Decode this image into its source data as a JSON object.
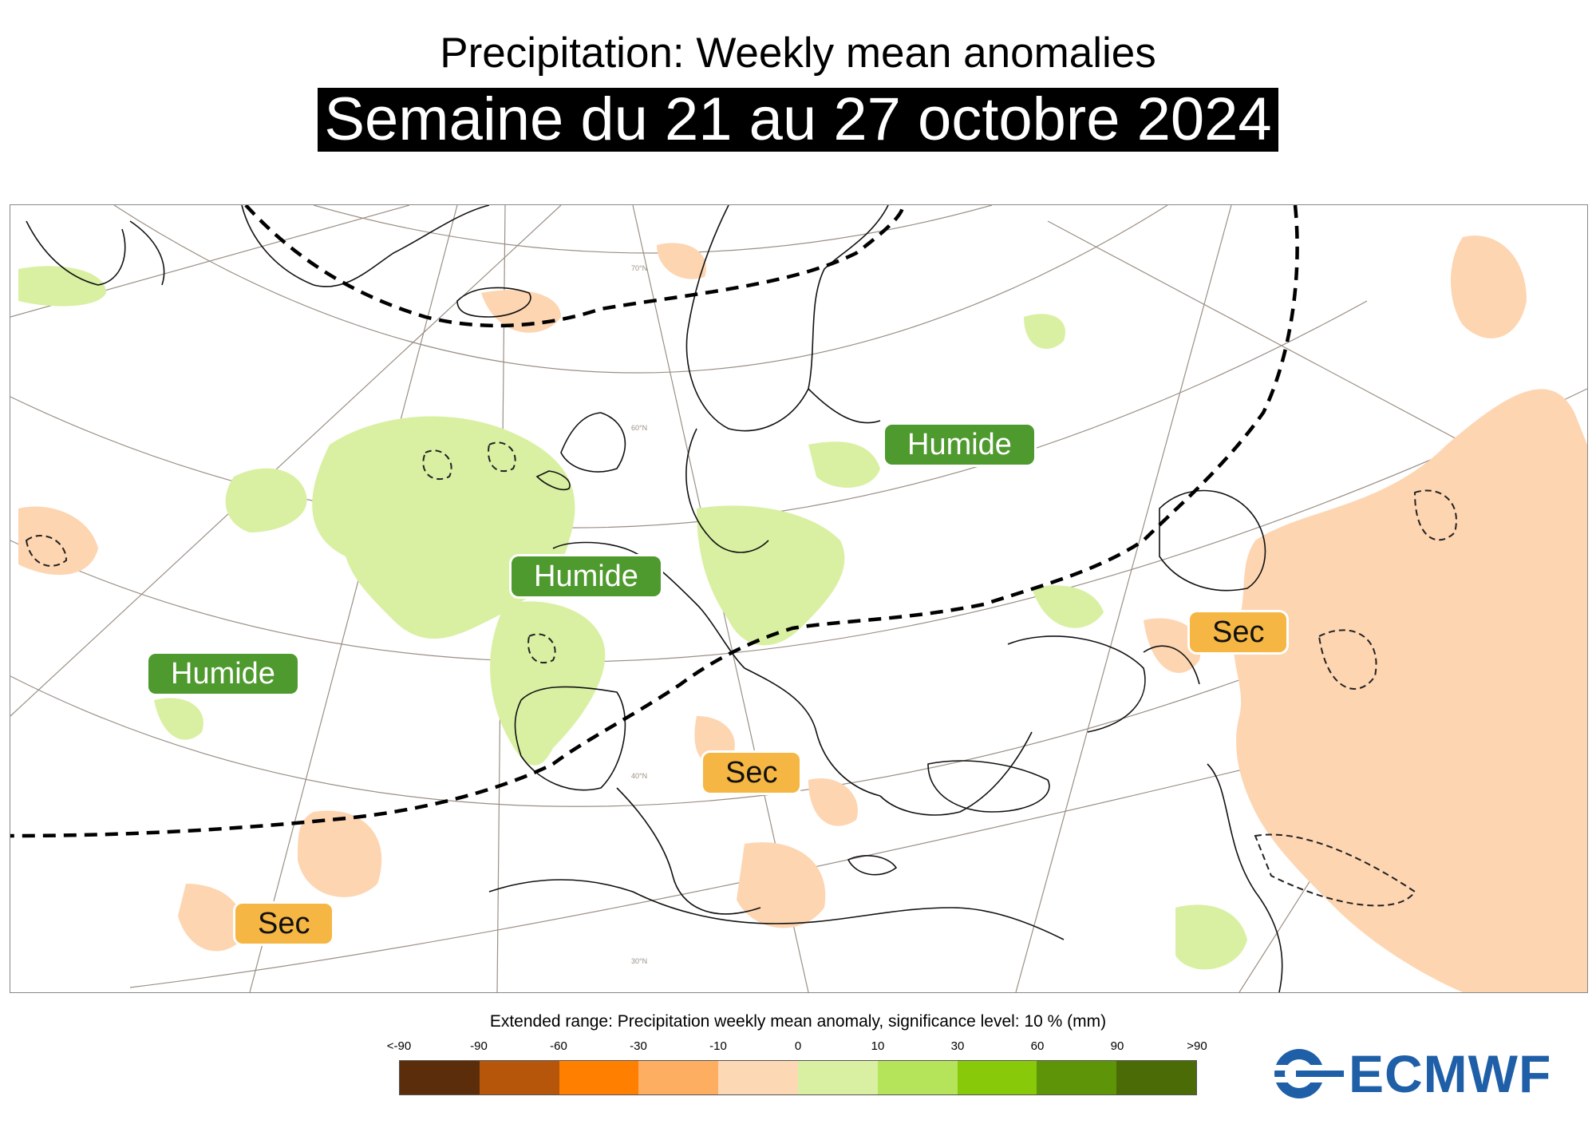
{
  "header": {
    "title": "Precipitation: Weekly mean anomalies",
    "subtitle": "Semaine du 21 au 27 octobre 2024"
  },
  "map": {
    "labels": {
      "humide_north": "Humide",
      "humide_center": "Humide",
      "humide_west": "Humide",
      "sec_russia": "Sec",
      "sec_med": "Sec",
      "sec_atlantic": "Sec"
    },
    "latitude_labels": [
      "70°N",
      "60°N",
      "40°N",
      "30°N"
    ],
    "colors": {
      "wet": "#4e9a2e",
      "dry": "#f5b643",
      "wet_anomaly_fill": "#d9f0a3",
      "dry_anomaly_fill": "#fdd5b1",
      "coastline": "#000000",
      "graticule": "#9b8f84"
    }
  },
  "colorbar": {
    "title": "Extended range: Precipitation weekly mean anomaly, significance level: 10 % (mm)",
    "ticks": [
      "<-90",
      "-90",
      "-60",
      "-30",
      "-10",
      "0",
      "10",
      "30",
      "60",
      "90",
      ">90"
    ],
    "colors": [
      "#5c2d0a",
      "#b5560b",
      "#ff7f00",
      "#fdae61",
      "#fdd8b5",
      "#d9f0a3",
      "#b5e35a",
      "#88c909",
      "#5d9408",
      "#4b6b07"
    ]
  },
  "logo": {
    "text": "ECMWF",
    "icon": "ecmwf-logo-icon"
  }
}
